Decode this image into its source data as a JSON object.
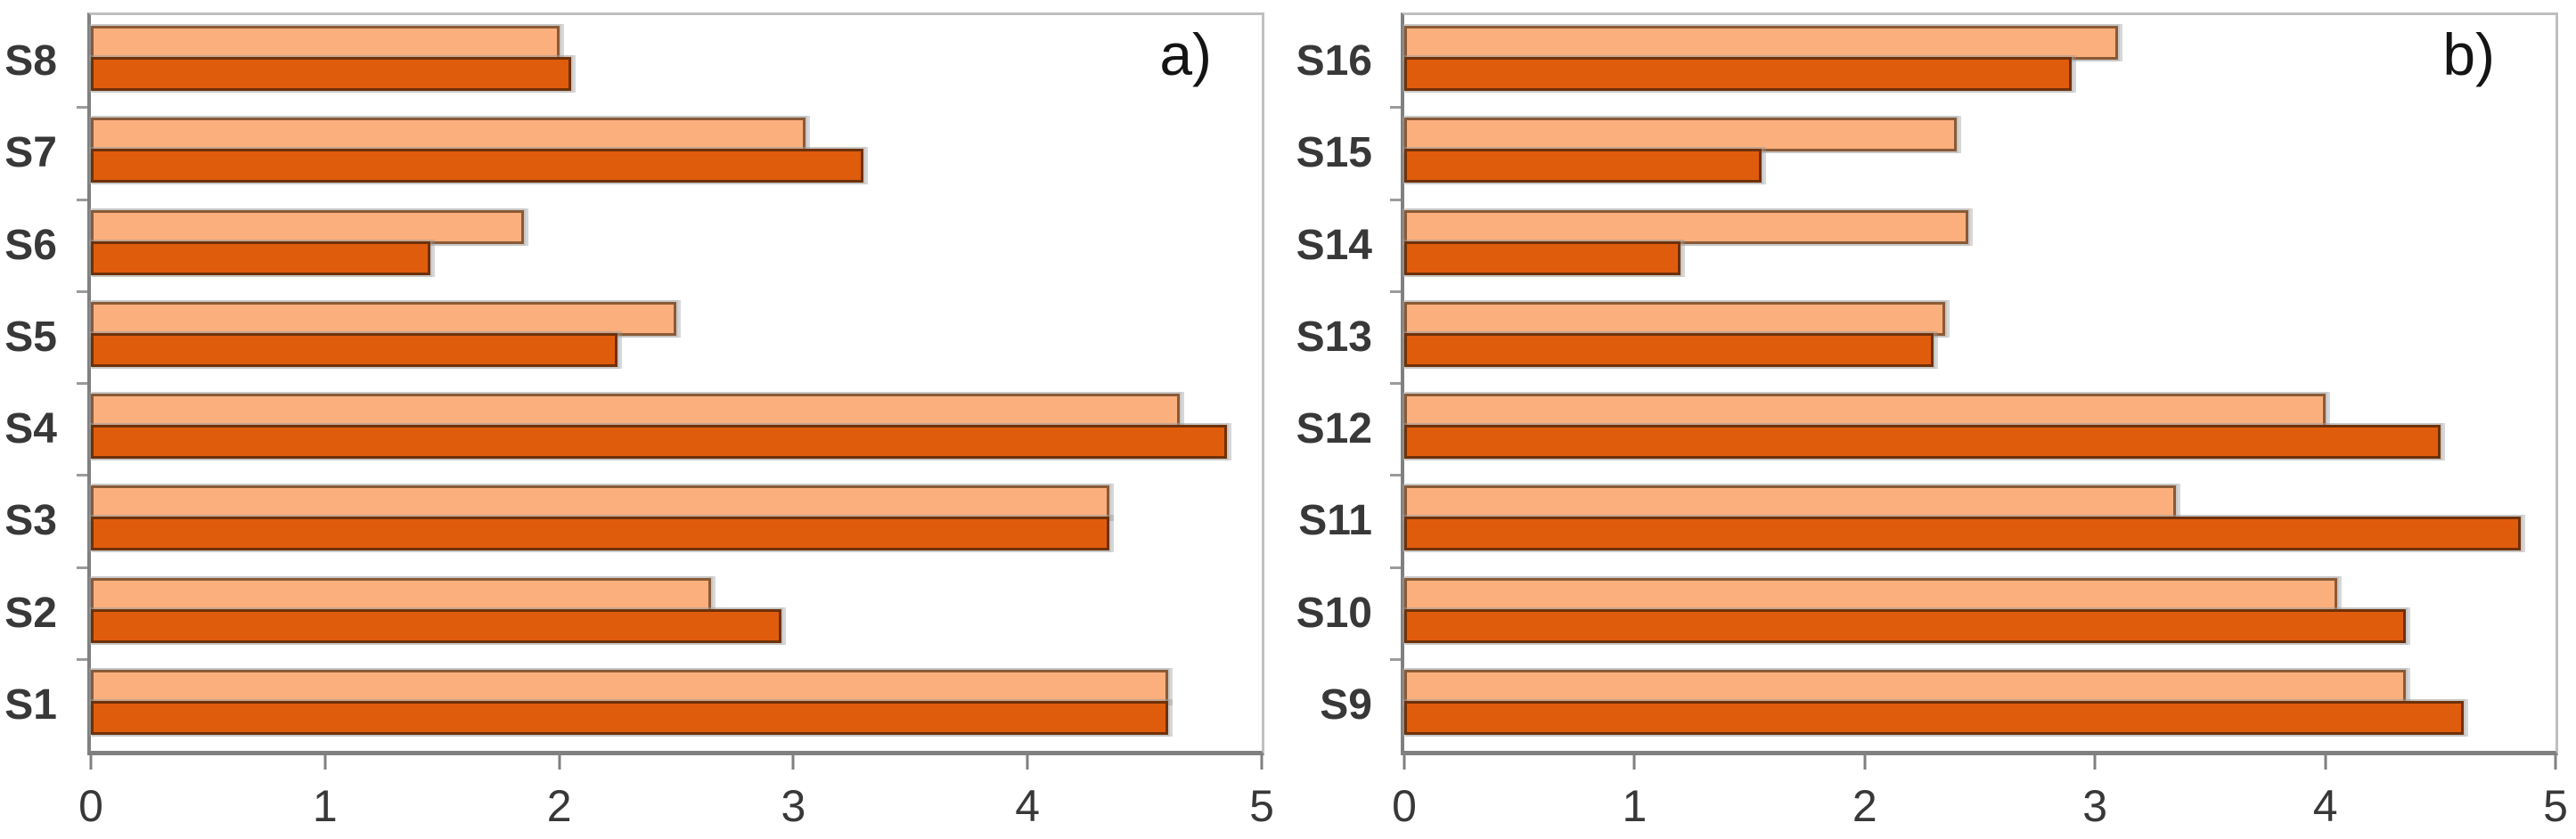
{
  "figure": {
    "background": "#ffffff"
  },
  "colors": {
    "series_light_fill": "#FBAF7D",
    "series_light_border": "#8A5A36",
    "series_dark_fill": "#E05C0D",
    "series_dark_border": "#6E3109",
    "axis_line": "#808080",
    "plot_border": "#BFBFBF",
    "tick_mark": "#9B9B9B",
    "label_text": "#383838"
  },
  "chart_data": [
    {
      "type": "bar",
      "orientation": "horizontal",
      "panel_label": "a)",
      "title": "",
      "xlabel": "",
      "ylabel": "",
      "grid": false,
      "legend": null,
      "xlim": [
        0,
        5
      ],
      "xticks": [
        0,
        1,
        2,
        3,
        4,
        5
      ],
      "categories_top_to_bottom": [
        "S8",
        "S7",
        "S6",
        "S5",
        "S4",
        "S3",
        "S2",
        "S1"
      ],
      "series": [
        {
          "name": "light-orange",
          "values": [
            2.0,
            3.05,
            1.85,
            2.5,
            4.65,
            4.35,
            2.65,
            4.6
          ]
        },
        {
          "name": "dark-orange",
          "values": [
            2.05,
            3.3,
            1.45,
            2.25,
            4.85,
            4.35,
            2.95,
            4.6
          ]
        }
      ]
    },
    {
      "type": "bar",
      "orientation": "horizontal",
      "panel_label": "b)",
      "title": "",
      "xlabel": "",
      "ylabel": "",
      "grid": false,
      "legend": null,
      "xlim": [
        0,
        5
      ],
      "xticks": [
        0,
        1,
        2,
        3,
        4,
        5
      ],
      "categories_top_to_bottom": [
        "S16",
        "S15",
        "S14",
        "S13",
        "S12",
        "S11",
        "S10",
        "S9"
      ],
      "series": [
        {
          "name": "light-orange",
          "values": [
            3.1,
            2.4,
            2.45,
            2.35,
            4.0,
            3.35,
            4.05,
            4.35
          ]
        },
        {
          "name": "dark-orange",
          "values": [
            2.9,
            1.55,
            1.2,
            2.3,
            4.5,
            4.85,
            4.35,
            4.6
          ]
        }
      ]
    }
  ]
}
